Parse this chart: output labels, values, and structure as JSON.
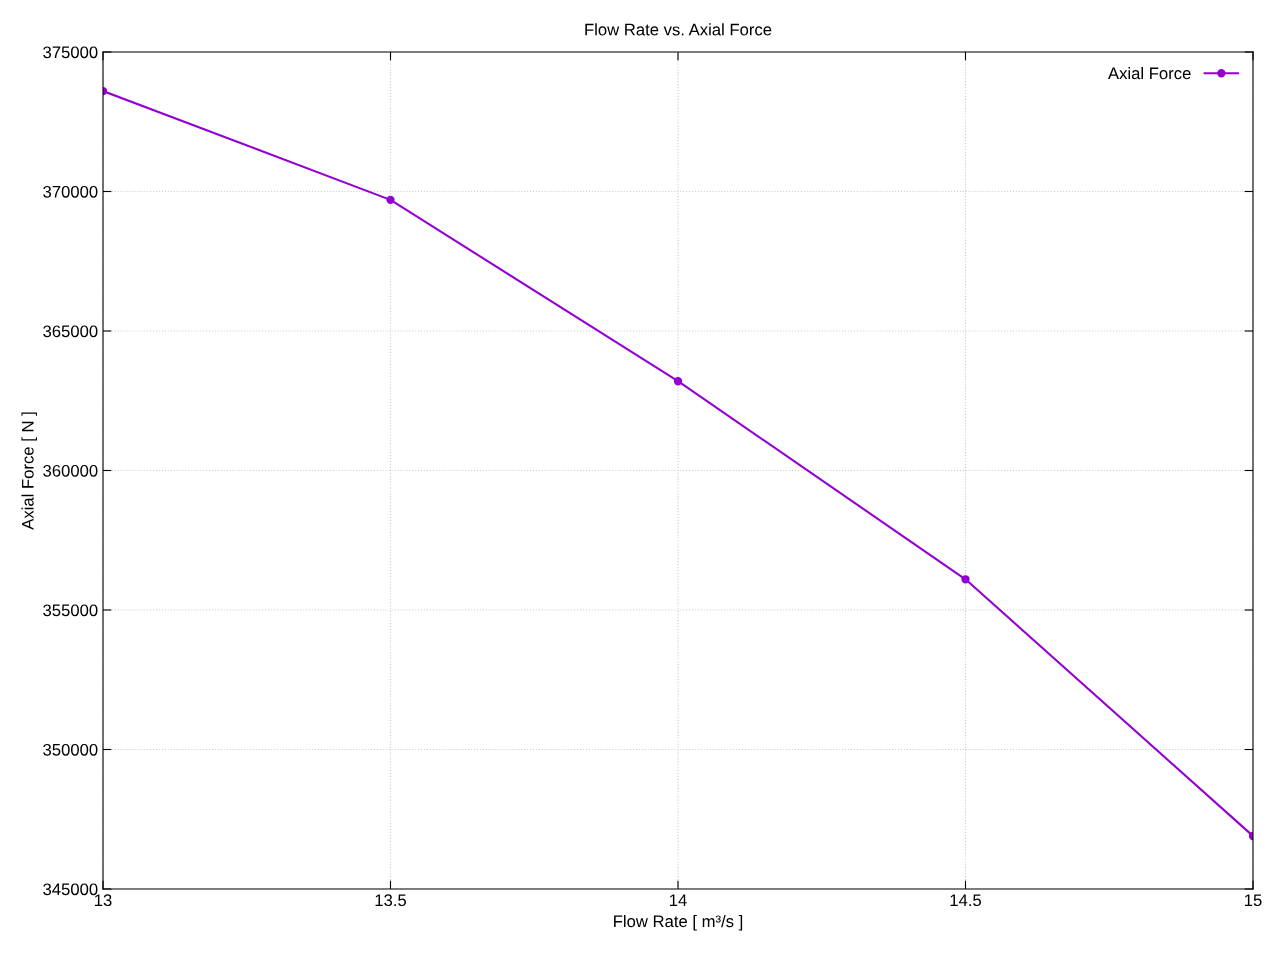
{
  "chart_data": {
    "type": "line",
    "title": "Flow Rate vs. Axial Force",
    "xlabel": "Flow Rate [ m³/s ]",
    "ylabel": "Axial Force [ N ]",
    "x": [
      13,
      13.5,
      14,
      14.5,
      15
    ],
    "series": [
      {
        "name": "Axial Force",
        "color": "#9400d3",
        "values": [
          373600,
          369700,
          363200,
          356100,
          346900
        ]
      }
    ],
    "xlim": [
      13,
      15
    ],
    "xticks": [
      13,
      13.5,
      14,
      14.5,
      15
    ],
    "ylim": [
      345000,
      375000
    ],
    "yticks": [
      345000,
      350000,
      355000,
      360000,
      365000,
      370000,
      375000
    ],
    "grid": true,
    "legend": "top right",
    "marker": "circle",
    "line_style": "solid"
  }
}
